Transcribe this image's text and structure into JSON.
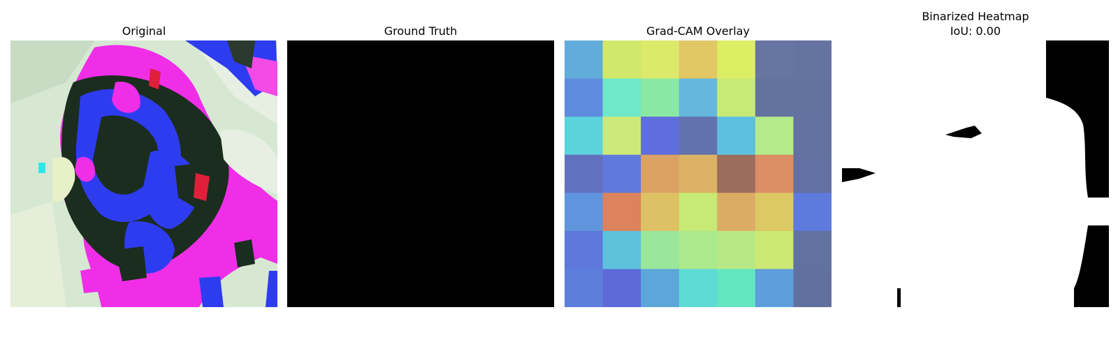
{
  "panels": [
    {
      "title": "Original"
    },
    {
      "title": "Ground Truth"
    },
    {
      "title": "Grad-CAM Overlay"
    },
    {
      "title": "Binarized Heatmap",
      "subtitle": "IoU: 0.00"
    }
  ],
  "gradcam": {
    "grid_size": 7,
    "colors": [
      [
        "#62acdc",
        "#d2e86a",
        "#dce96a",
        "#e2c765",
        "#dcee64",
        "#6775a2",
        "#6573a1"
      ],
      [
        "#5f8bdc",
        "#6ee8c8",
        "#8ae8a5",
        "#65b8dc",
        "#c6ea75",
        "#6472a0",
        "#6472a0"
      ],
      [
        "#5cd2dc",
        "#cde97a",
        "#5e6edc",
        "#6272ae",
        "#5ec0df",
        "#b3ea8a",
        "#6372a0"
      ],
      [
        "#6270c0",
        "#5f79dc",
        "#dca264",
        "#dcb264",
        "#9c6c5c",
        "#dc8e64",
        "#6271a2"
      ],
      [
        "#5f95dc",
        "#dc825c",
        "#dcc264",
        "#c6ea75",
        "#dcac64",
        "#dcc864",
        "#5e7adc"
      ],
      [
        "#5e78dc",
        "#5ec2dc",
        "#9ae69a",
        "#ace88c",
        "#b8e886",
        "#cce874",
        "#6272a0"
      ],
      [
        "#5e7edc",
        "#5e6ad8",
        "#5ca6dc",
        "#5edad4",
        "#62e6c2",
        "#5e9edc",
        "#6270a0"
      ]
    ]
  },
  "original": {
    "colors": {
      "background": "#d4e6d0",
      "magenta": "#f02ee8",
      "blue": "#2e3cf0",
      "dark": "#1a2c1c",
      "red": "#e0203a"
    }
  },
  "binarized": {
    "colors": {
      "foreground": "#ffffff",
      "background": "#000000"
    }
  }
}
